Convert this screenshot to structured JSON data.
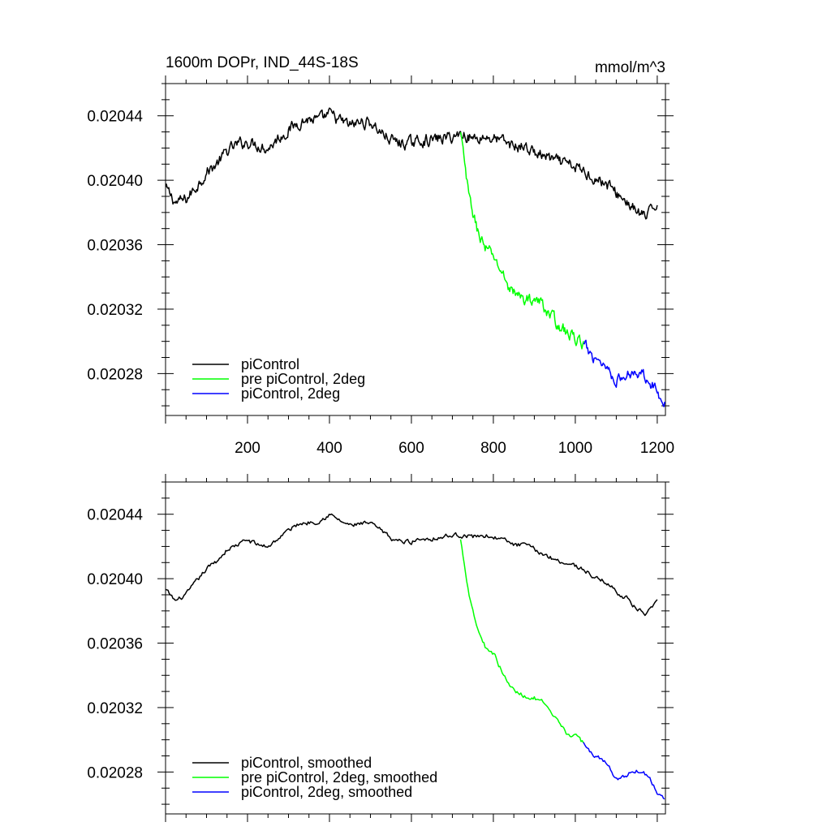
{
  "chart_data": [
    {
      "type": "line",
      "title": "1600m DOPr, IND_44S-18S",
      "units": "mmol/m^3",
      "xlim": [
        0,
        1220
      ],
      "ylim": [
        0.020254,
        0.02046
      ],
      "xticks": [
        200,
        400,
        600,
        800,
        1000,
        1200
      ],
      "xtick_labels": [
        "200",
        "400",
        "600",
        "800",
        "1000",
        "1200"
      ],
      "yticks": [
        0.02028,
        0.02032,
        0.02036,
        0.0204,
        0.02044
      ],
      "ytick_labels": [
        "0.02028",
        "0.02032",
        "0.02036",
        "0.02040",
        "0.02044"
      ],
      "legend": [
        "piControl",
        "pre piControl, 2deg",
        "piControl, 2deg"
      ],
      "series": [
        {
          "name": "piControl",
          "color": "#000000",
          "x": [
            0,
            25,
            50,
            75,
            100,
            125,
            150,
            175,
            200,
            225,
            250,
            275,
            300,
            325,
            350,
            375,
            400,
            425,
            450,
            475,
            500,
            525,
            550,
            575,
            600,
            625,
            650,
            675,
            700,
            725,
            750,
            775,
            800,
            825,
            850,
            875,
            900,
            925,
            950,
            975,
            1000,
            1025,
            1050,
            1075,
            1100,
            1125,
            1150,
            1175,
            1200
          ],
          "values": [
            0.020395,
            0.020386,
            0.020388,
            0.020396,
            0.020405,
            0.02041,
            0.020418,
            0.020422,
            0.020424,
            0.020422,
            0.02042,
            0.020426,
            0.020431,
            0.020436,
            0.020438,
            0.020437,
            0.020441,
            0.020437,
            0.020434,
            0.020436,
            0.020436,
            0.02043,
            0.020425,
            0.020423,
            0.020423,
            0.020425,
            0.020425,
            0.020426,
            0.020427,
            0.020429,
            0.020426,
            0.020427,
            0.020426,
            0.020424,
            0.020421,
            0.020421,
            0.020417,
            0.020415,
            0.020412,
            0.02041,
            0.020408,
            0.020405,
            0.020401,
            0.020398,
            0.020392,
            0.020387,
            0.02038,
            0.020377,
            0.020386
          ]
        },
        {
          "name": "pre piControl, 2deg",
          "color": "#00ff00",
          "x": [
            720,
            740,
            760,
            780,
            800,
            820,
            840,
            860,
            880,
            900,
            920,
            940,
            960,
            980,
            1000,
            1020
          ],
          "values": [
            0.020429,
            0.02039,
            0.02037,
            0.020358,
            0.020353,
            0.020343,
            0.020333,
            0.020328,
            0.020326,
            0.020326,
            0.020323,
            0.020316,
            0.02031,
            0.020305,
            0.020302,
            0.020298
          ]
        },
        {
          "name": "piControl, 2deg",
          "color": "#0000ff",
          "x": [
            1020,
            1040,
            1060,
            1080,
            1100,
            1120,
            1140,
            1160,
            1180,
            1200,
            1220
          ],
          "values": [
            0.020298,
            0.020291,
            0.020289,
            0.020283,
            0.020276,
            0.020277,
            0.020282,
            0.020281,
            0.020277,
            0.020268,
            0.020263
          ]
        }
      ]
    },
    {
      "type": "line",
      "title": "",
      "units": "",
      "xlim": [
        0,
        1220
      ],
      "ylim": [
        0.020254,
        0.02046
      ],
      "xticks": [
        200,
        400,
        600,
        800,
        1000,
        1200
      ],
      "xtick_labels": [],
      "yticks": [
        0.02028,
        0.02032,
        0.02036,
        0.0204,
        0.02044
      ],
      "ytick_labels": [
        "0.02028",
        "0.02032",
        "0.02036",
        "0.02040",
        "0.02044"
      ],
      "legend": [
        "piControl, smoothed",
        "pre piControl, 2deg, smoothed",
        "piControl, 2deg, smoothed"
      ],
      "series": [
        {
          "name": "piControl, smoothed",
          "color": "#000000",
          "x": [
            0,
            25,
            50,
            75,
            100,
            125,
            150,
            175,
            200,
            225,
            250,
            275,
            300,
            325,
            350,
            375,
            400,
            425,
            450,
            475,
            500,
            525,
            550,
            575,
            600,
            625,
            650,
            675,
            700,
            725,
            750,
            775,
            800,
            825,
            850,
            875,
            900,
            925,
            950,
            975,
            1000,
            1025,
            1050,
            1075,
            1100,
            1125,
            1150,
            1175,
            1200
          ],
          "values": [
            0.020393,
            0.020386,
            0.02039,
            0.020398,
            0.020406,
            0.020411,
            0.020418,
            0.020421,
            0.020424,
            0.020421,
            0.02042,
            0.020425,
            0.02043,
            0.020434,
            0.020435,
            0.020436,
            0.02044,
            0.020436,
            0.020433,
            0.020434,
            0.020434,
            0.02043,
            0.020425,
            0.020423,
            0.020423,
            0.020425,
            0.020425,
            0.020426,
            0.020427,
            0.020427,
            0.020426,
            0.020427,
            0.020426,
            0.020424,
            0.020421,
            0.020421,
            0.020418,
            0.020415,
            0.020412,
            0.02041,
            0.020408,
            0.020405,
            0.0204,
            0.020398,
            0.020392,
            0.020388,
            0.020381,
            0.020378,
            0.020385
          ]
        },
        {
          "name": "pre piControl, 2deg, smoothed",
          "color": "#00ff00",
          "x": [
            720,
            740,
            760,
            780,
            800,
            820,
            840,
            860,
            880,
            900,
            920,
            940,
            960,
            980,
            1000,
            1020
          ],
          "values": [
            0.020424,
            0.020392,
            0.02037,
            0.020358,
            0.020354,
            0.020343,
            0.020333,
            0.020329,
            0.020327,
            0.020326,
            0.020323,
            0.020316,
            0.02031,
            0.020304,
            0.020302,
            0.020298
          ]
        },
        {
          "name": "piControl, 2deg, smoothed",
          "color": "#0000ff",
          "x": [
            1020,
            1040,
            1060,
            1080,
            1100,
            1120,
            1140,
            1160,
            1180,
            1200,
            1220
          ],
          "values": [
            0.020298,
            0.020291,
            0.020289,
            0.020284,
            0.020276,
            0.020277,
            0.020281,
            0.020281,
            0.020277,
            0.020268,
            0.020263
          ]
        }
      ]
    }
  ]
}
